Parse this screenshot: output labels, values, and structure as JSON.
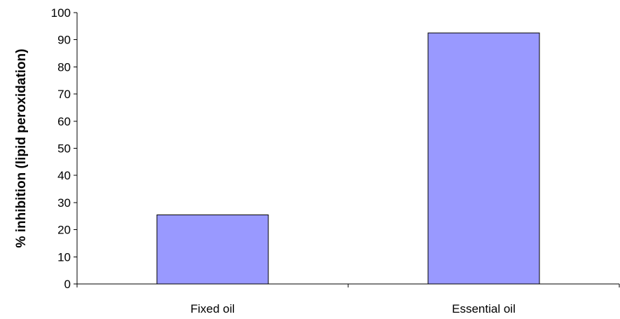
{
  "chart_data": {
    "type": "bar",
    "title": "",
    "xlabel": "",
    "ylabel": "% inhibition (lipid peroxidation)",
    "categories": [
      "Fixed oil",
      "Essential oil"
    ],
    "values": [
      25.5,
      92.5
    ],
    "ylim": [
      0,
      100
    ],
    "yticks": [
      "0",
      "10",
      "20",
      "30",
      "40",
      "50",
      "60",
      "70",
      "80",
      "90",
      "100"
    ],
    "grid": false,
    "legend": "none",
    "bar_color": "#9999ff",
    "bar_edge_color": "#000000"
  }
}
